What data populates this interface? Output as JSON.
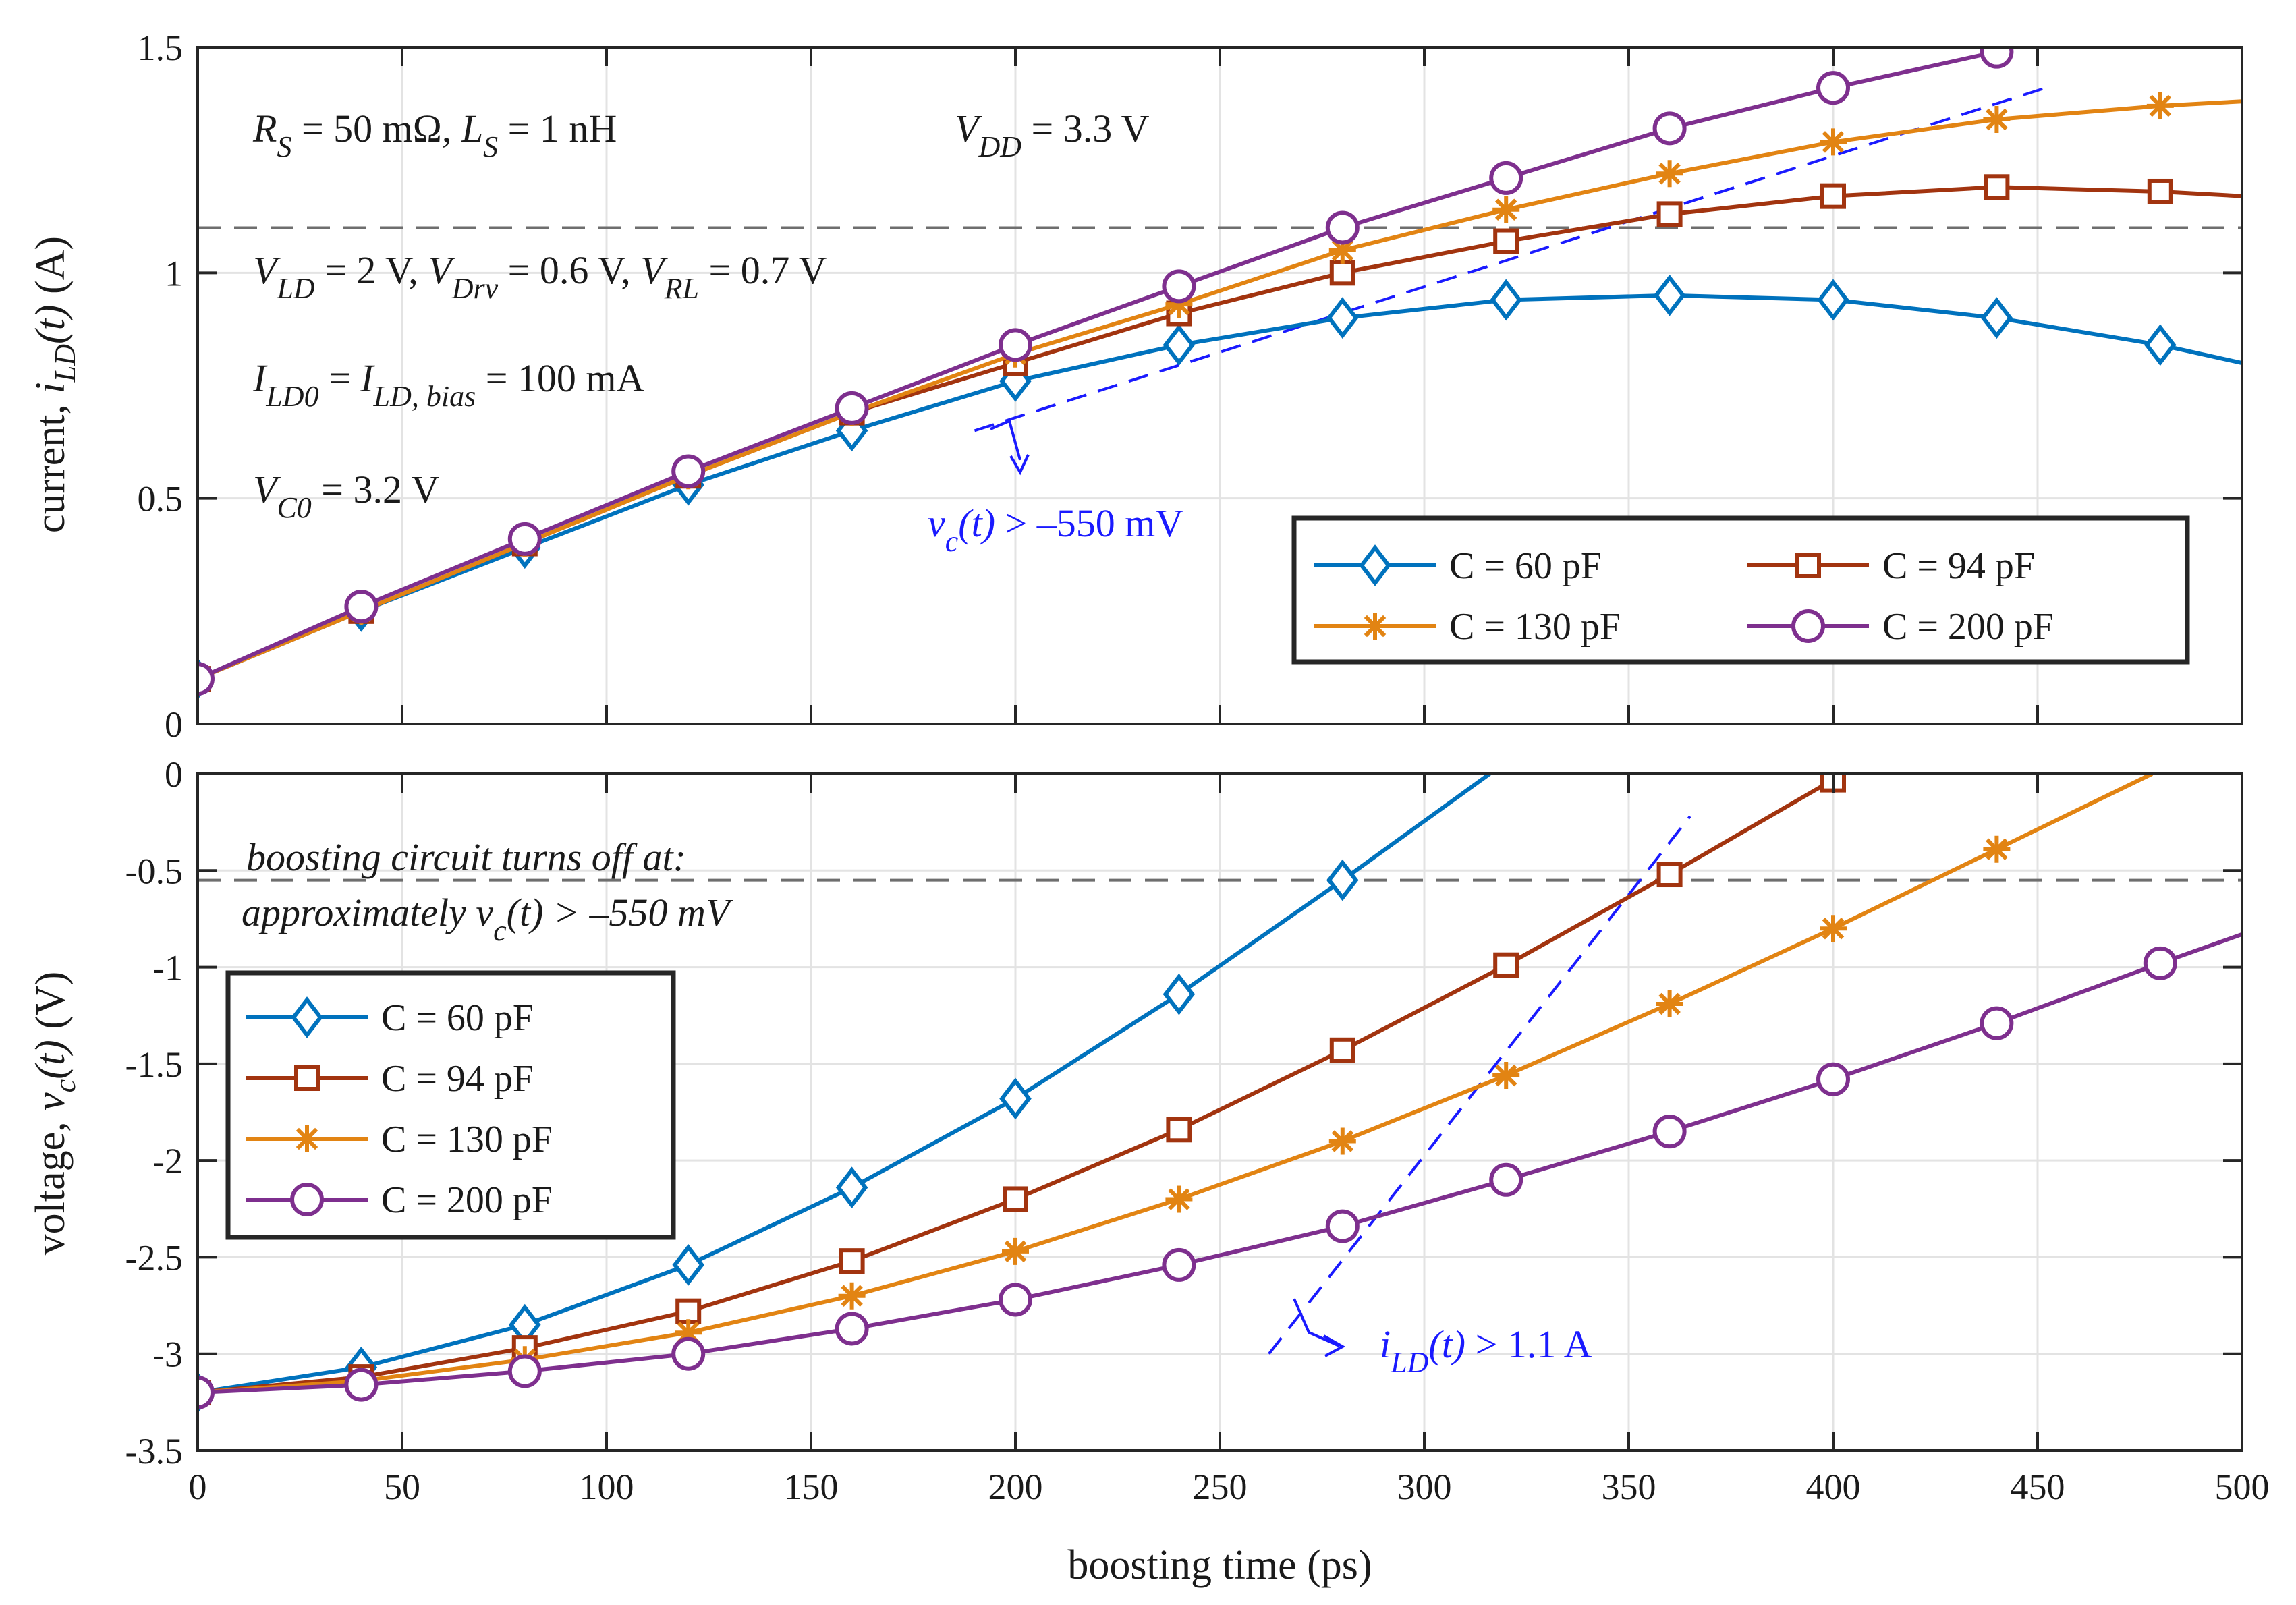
{
  "colors": {
    "C60": "#0072BD",
    "C94": "#A2340F",
    "C130": "#E28413",
    "C200": "#7E2F8E",
    "annotation": "#1a1aff",
    "threshold": "#6e6e6e"
  },
  "chart_data": [
    {
      "type": "line",
      "panel": "top",
      "ylabel_main": "current, ",
      "ylabel_var": "i",
      "ylabel_sub": "LD",
      "ylabel_arg": "(t)",
      "ylabel_unit": " (A)",
      "xlim": [
        0,
        500
      ],
      "ylim": [
        0,
        1.5
      ],
      "xticks": [
        0,
        50,
        100,
        150,
        200,
        250,
        300,
        350,
        400,
        450,
        500
      ],
      "yticks": [
        0,
        0.5,
        1,
        1.5
      ],
      "ytick_labels": [
        "0",
        "0.5",
        "1",
        "1.5"
      ],
      "grid": true,
      "threshold": 1.1,
      "legend_position": "bottom-right",
      "annotations": {
        "line1": {
          "R": "R",
          "Rs": "S",
          "Rv": " = 50 mΩ,  ",
          "L": "L",
          "Ls": "S",
          "Lv": " = 1 nH"
        },
        "vdd": {
          "V": "V",
          "sub": "DD",
          "val": " = 3.3 V"
        },
        "line2": {
          "V1": "V",
          "s1": "LD",
          "v1": " = 2 V,  ",
          "V2": "V",
          "s2": "Drv",
          "v2": " = 0.6 V,  ",
          "V3": "V",
          "s3": "RL",
          "v3": " = 0.7 V"
        },
        "line3": {
          "I1": "I",
          "s1": "LD0",
          "eq": " = ",
          "I2": "I",
          "s2": "LD, bias",
          "v": " = 100 mA"
        },
        "line4": {
          "V": "V",
          "s": "C0",
          "v": " = 3.2 V"
        },
        "cond": {
          "v": "v",
          "s": "c",
          "arg": "(t)",
          "rest": " > –550 mV"
        }
      },
      "series": [
        {
          "name": "C = 60 pF",
          "key": "C60",
          "marker": "diamond",
          "x": [
            0,
            40,
            80,
            120,
            160,
            200,
            240,
            280,
            320,
            360,
            400,
            440,
            480,
            500
          ],
          "y": [
            0.1,
            0.25,
            0.39,
            0.53,
            0.65,
            0.76,
            0.84,
            0.9,
            0.94,
            0.95,
            0.94,
            0.9,
            0.84,
            0.8
          ],
          "markers": [
            0,
            1,
            2,
            3,
            4,
            5,
            6,
            7,
            8,
            9,
            10,
            11,
            12
          ]
        },
        {
          "name": "C = 94 pF",
          "key": "C94",
          "marker": "square",
          "x": [
            0,
            40,
            80,
            120,
            160,
            200,
            240,
            280,
            320,
            360,
            400,
            440,
            480,
            500
          ],
          "y": [
            0.1,
            0.25,
            0.4,
            0.55,
            0.69,
            0.8,
            0.91,
            1.0,
            1.07,
            1.13,
            1.17,
            1.19,
            1.18,
            1.17
          ],
          "markers": [
            0,
            1,
            2,
            3,
            4,
            5,
            6,
            7,
            8,
            9,
            10,
            11,
            12
          ]
        },
        {
          "name": "C = 130 pF",
          "key": "C130",
          "marker": "asterisk",
          "x": [
            0,
            40,
            80,
            120,
            160,
            200,
            240,
            280,
            320,
            360,
            400,
            440,
            480,
            500
          ],
          "y": [
            0.1,
            0.25,
            0.4,
            0.55,
            0.69,
            0.82,
            0.93,
            1.05,
            1.14,
            1.22,
            1.29,
            1.34,
            1.37,
            1.38
          ],
          "markers": [
            0,
            1,
            2,
            3,
            4,
            5,
            6,
            7,
            8,
            9,
            10,
            11,
            12
          ]
        },
        {
          "name": "C = 200 pF",
          "key": "C200",
          "marker": "circle",
          "x": [
            0,
            40,
            80,
            120,
            160,
            200,
            240,
            280,
            320,
            360,
            400,
            440
          ],
          "y": [
            0.1,
            0.26,
            0.41,
            0.56,
            0.7,
            0.84,
            0.97,
            1.1,
            1.21,
            1.32,
            1.41,
            1.49
          ],
          "markers": [
            0,
            1,
            2,
            3,
            4,
            5,
            6,
            7,
            8,
            9,
            10,
            11
          ]
        }
      ],
      "dashed_line": {
        "x": [
          190,
          452
        ],
        "y": [
          0.65,
          1.41
        ]
      }
    },
    {
      "type": "line",
      "panel": "bottom",
      "xlabel": "boosting time (ps)",
      "ylabel_main": "voltage, ",
      "ylabel_var": "v",
      "ylabel_sub": "c",
      "ylabel_arg": "(t)",
      "ylabel_unit": " (V)",
      "xlim": [
        0,
        500
      ],
      "ylim": [
        -3.5,
        0
      ],
      "xticks": [
        0,
        50,
        100,
        150,
        200,
        250,
        300,
        350,
        400,
        450,
        500
      ],
      "xtick_labels": [
        "0",
        "50",
        "100",
        "150",
        "200",
        "250",
        "300",
        "350",
        "400",
        "450",
        "500"
      ],
      "yticks": [
        0,
        -0.5,
        -1,
        -1.5,
        -2,
        -2.5,
        -3,
        -3.5
      ],
      "ytick_labels": [
        "0",
        "-0.5",
        "-1",
        "-1.5",
        "-2",
        "-2.5",
        "-3",
        "-3.5"
      ],
      "grid": true,
      "threshold": -0.55,
      "legend_position": "left",
      "annotations": {
        "turnoff1": "boosting circuit turns off at:",
        "turnoff2a": "approximately ",
        "turnoff2v": "v",
        "turnoff2s": "c",
        "turnoff2r": "(t) > –550 mV",
        "cond": {
          "i": "i",
          "s": "LD",
          "arg": "(t)",
          "rest": " > 1.1 A"
        }
      },
      "series": [
        {
          "name": "C = 60 pF",
          "key": "C60",
          "marker": "diamond",
          "x": [
            0,
            40,
            80,
            120,
            160,
            200,
            240,
            280,
            316
          ],
          "y": [
            -3.2,
            -3.07,
            -2.85,
            -2.54,
            -2.14,
            -1.68,
            -1.14,
            -0.55,
            0.0
          ],
          "markers": [
            0,
            1,
            2,
            3,
            4,
            5,
            6,
            7
          ]
        },
        {
          "name": "C = 94 pF",
          "key": "C94",
          "marker": "square",
          "x": [
            0,
            40,
            80,
            120,
            160,
            200,
            240,
            280,
            320,
            360,
            400
          ],
          "y": [
            -3.2,
            -3.12,
            -2.97,
            -2.78,
            -2.52,
            -2.2,
            -1.84,
            -1.43,
            -0.99,
            -0.52,
            -0.03
          ],
          "markers": [
            0,
            1,
            2,
            3,
            4,
            5,
            6,
            7,
            8,
            9,
            10
          ]
        },
        {
          "name": "C = 130 pF",
          "key": "C130",
          "marker": "asterisk",
          "x": [
            0,
            40,
            80,
            120,
            160,
            200,
            240,
            280,
            320,
            360,
            400,
            440,
            478
          ],
          "y": [
            -3.2,
            -3.14,
            -3.03,
            -2.89,
            -2.7,
            -2.47,
            -2.2,
            -1.9,
            -1.56,
            -1.19,
            -0.8,
            -0.39,
            0.0
          ],
          "markers": [
            0,
            1,
            2,
            3,
            4,
            5,
            6,
            7,
            8,
            9,
            10,
            11
          ]
        },
        {
          "name": "C = 200 pF",
          "key": "C200",
          "marker": "circle",
          "x": [
            0,
            40,
            80,
            120,
            160,
            200,
            240,
            280,
            320,
            360,
            400,
            440,
            480,
            500
          ],
          "y": [
            -3.2,
            -3.16,
            -3.09,
            -3.0,
            -2.87,
            -2.72,
            -2.54,
            -2.34,
            -2.1,
            -1.85,
            -1.58,
            -1.29,
            -0.98,
            -0.83
          ],
          "markers": [
            0,
            1,
            2,
            3,
            4,
            5,
            6,
            7,
            8,
            9,
            10,
            11,
            12
          ]
        }
      ],
      "dashed_line": {
        "x": [
          262,
          365
        ],
        "y": [
          -3.0,
          -0.22
        ]
      }
    }
  ]
}
